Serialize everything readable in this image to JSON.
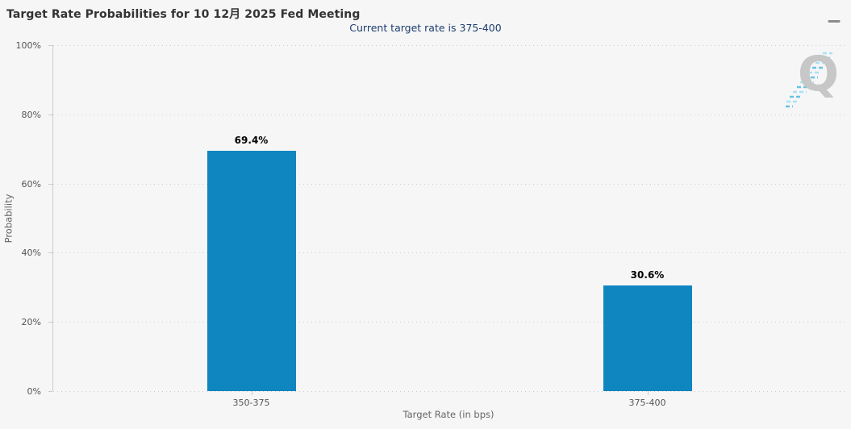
{
  "header": {
    "title": "Target Rate Probabilities for 10 12月 2025 Fed Meeting",
    "subtitle": "Current target rate is 375-400",
    "menu_icon": "hamburger-icon"
  },
  "colors": {
    "background": "#f6f6f6",
    "bar": "#0f86c0",
    "subtitle_text": "#1d3d6d",
    "axis_line": "#cccccc",
    "gridline": "#cccccc",
    "axis_label": "#555555",
    "axis_title": "#666666",
    "data_label": "#000000",
    "watermark_letter": "#c7c7c7",
    "watermark_dash_light": "#a9e1f6",
    "watermark_dash_dark": "#63c3e8"
  },
  "watermark": {
    "letter": "Q"
  },
  "chart_data": {
    "type": "bar",
    "title": "Target Rate Probabilities for 10 12月 2025 Fed Meeting",
    "subtitle": "Current target rate is 375-400",
    "categories": [
      "350-375",
      "375-400"
    ],
    "values": [
      69.4,
      30.6
    ],
    "value_labels": [
      "69.4%",
      "30.6%"
    ],
    "xlabel": "Target Rate (in bps)",
    "ylabel": "Probability",
    "ylim": [
      0,
      100
    ],
    "ytick_interval": 20,
    "ytick_labels": [
      "0%",
      "20%",
      "40%",
      "60%",
      "80%",
      "100%"
    ],
    "grid": "dotted-horizontal",
    "legend_position": "none"
  }
}
